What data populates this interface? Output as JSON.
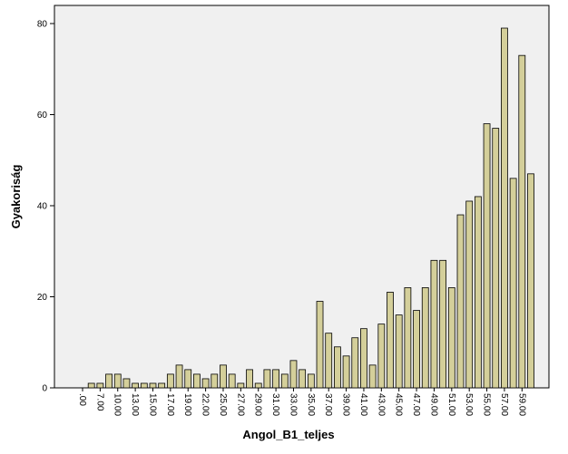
{
  "chart_data": {
    "type": "bar",
    "x_label": "Angol_B1_teljes",
    "y_label": "Gyakoriság",
    "categories": [
      ".00",
      null,
      "7.00",
      null,
      "10.00",
      null,
      "13.00",
      null,
      "15.00",
      null,
      "17.00",
      null,
      "19.00",
      null,
      "22.00",
      null,
      "25.00",
      null,
      "27.00",
      null,
      "29.00",
      null,
      "31.00",
      null,
      "33.00",
      null,
      "35.00",
      null,
      "37.00",
      null,
      "39.00",
      null,
      "41.00",
      null,
      "43.00",
      null,
      "45.00",
      null,
      "47.00",
      null,
      "49.00",
      null,
      "51.00",
      null,
      "53.00",
      null,
      "55.00",
      null,
      "57.00",
      null,
      "59.00",
      null
    ],
    "values": [
      0,
      1,
      1,
      3,
      3,
      2,
      1,
      1,
      1,
      1,
      3,
      5,
      4,
      3,
      2,
      3,
      5,
      3,
      1,
      4,
      1,
      4,
      4,
      3,
      6,
      4,
      3,
      19,
      12,
      9,
      7,
      11,
      13,
      5,
      14,
      21,
      16,
      22,
      17,
      22,
      28,
      28,
      22,
      38,
      41,
      42,
      58,
      57,
      79,
      46,
      73,
      47
    ],
    "color": "#d4cf9a",
    "ylim": [
      0,
      84
    ],
    "yticks": [
      0,
      20,
      40,
      60,
      80
    ]
  }
}
